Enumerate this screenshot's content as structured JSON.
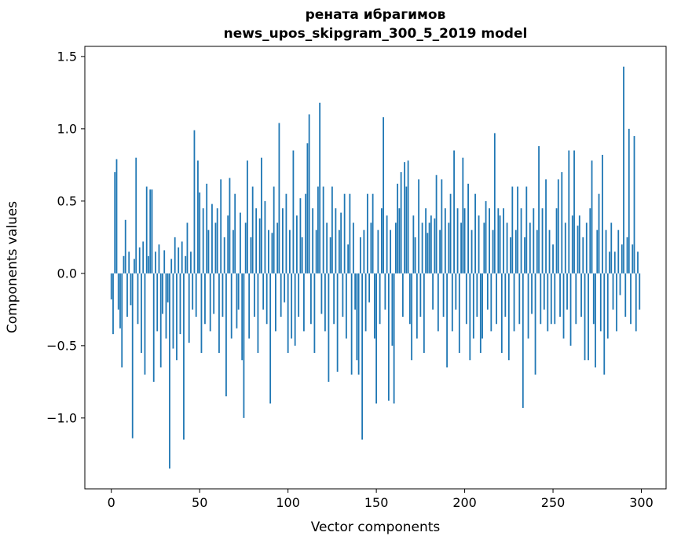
{
  "figure": {
    "title_line1": "рената ибрагимов",
    "title_line2": "news_upos_skipgram_300_5_2019 model",
    "xlabel": "Vector components",
    "ylabel": "Components values"
  },
  "chart_data": {
    "type": "bar",
    "title": "рената ибрагимов\nnews_upos_skipgram_300_5_2019 model",
    "xlabel": "Vector components",
    "ylabel": "Components values",
    "bar_color": "#1f77b4",
    "grid": false,
    "legend": "none",
    "xlim": [
      -15,
      314
    ],
    "ylim": [
      -1.49,
      1.57
    ],
    "xticks": [
      0,
      50,
      100,
      150,
      200,
      250,
      300
    ],
    "yticks": [
      -1.0,
      -0.5,
      0.0,
      0.5,
      1.0,
      1.5
    ],
    "n_components": 300,
    "values": [
      -0.18,
      -0.42,
      0.7,
      0.79,
      -0.25,
      -0.38,
      -0.65,
      0.12,
      0.37,
      -0.3,
      0.15,
      -0.22,
      -1.14,
      0.1,
      0.8,
      -0.35,
      0.18,
      -0.55,
      0.22,
      -0.7,
      0.6,
      0.12,
      0.58,
      0.58,
      -0.75,
      0.15,
      -0.4,
      0.2,
      -0.65,
      -0.28,
      0.16,
      -0.45,
      -0.2,
      -1.35,
      0.1,
      -0.52,
      0.25,
      -0.6,
      0.18,
      -0.42,
      0.22,
      -1.15,
      0.12,
      0.35,
      -0.48,
      0.15,
      -0.25,
      0.99,
      -0.3,
      0.78,
      0.56,
      -0.55,
      0.45,
      -0.35,
      0.62,
      0.3,
      -0.4,
      0.48,
      -0.28,
      0.35,
      0.45,
      -0.55,
      0.65,
      -0.3,
      0.25,
      -0.85,
      0.4,
      0.66,
      -0.45,
      0.3,
      0.55,
      -0.38,
      -0.25,
      0.42,
      -0.6,
      -1.0,
      0.35,
      0.78,
      -0.45,
      0.25,
      0.6,
      -0.3,
      0.45,
      -0.55,
      0.38,
      0.8,
      -0.25,
      0.5,
      -0.35,
      0.3,
      -0.9,
      0.28,
      0.6,
      -0.4,
      0.35,
      1.04,
      -0.3,
      0.45,
      -0.2,
      0.55,
      -0.55,
      0.3,
      -0.45,
      0.85,
      -0.5,
      0.4,
      -0.3,
      0.52,
      0.25,
      -0.4,
      0.55,
      0.9,
      1.1,
      -0.35,
      0.45,
      -0.55,
      0.3,
      0.6,
      1.18,
      -0.28,
      0.6,
      -0.4,
      0.35,
      -0.75,
      0.25,
      0.6,
      -0.35,
      0.45,
      -0.68,
      0.3,
      0.42,
      -0.3,
      0.55,
      -0.45,
      0.2,
      0.55,
      -0.7,
      0.35,
      -0.25,
      -0.6,
      -0.7,
      0.25,
      -1.15,
      0.3,
      -0.4,
      0.55,
      -0.2,
      0.35,
      0.55,
      -0.45,
      -0.9,
      0.3,
      -0.35,
      0.45,
      1.08,
      -0.25,
      0.4,
      -0.88,
      0.3,
      -0.5,
      -0.9,
      0.35,
      0.62,
      0.45,
      0.7,
      -0.3,
      0.77,
      0.6,
      0.78,
      -0.35,
      -0.6,
      0.4,
      0.25,
      -0.45,
      0.65,
      -0.3,
      0.35,
      -0.55,
      0.45,
      0.28,
      0.35,
      0.4,
      -0.25,
      0.38,
      0.68,
      -0.4,
      0.3,
      0.65,
      -0.3,
      0.45,
      -0.65,
      0.35,
      0.55,
      -0.4,
      0.85,
      -0.25,
      0.45,
      -0.55,
      0.35,
      0.8,
      0.45,
      -0.35,
      0.62,
      -0.6,
      0.3,
      -0.45,
      0.55,
      -0.3,
      0.4,
      -0.55,
      -0.45,
      0.35,
      0.5,
      -0.25,
      0.45,
      -0.4,
      0.3,
      0.97,
      -0.35,
      0.45,
      0.4,
      -0.55,
      0.45,
      -0.3,
      0.35,
      -0.6,
      0.25,
      0.6,
      -0.4,
      0.3,
      0.6,
      -0.35,
      0.45,
      -0.93,
      0.25,
      0.6,
      -0.45,
      0.35,
      -0.28,
      0.45,
      -0.7,
      0.3,
      0.88,
      -0.35,
      0.45,
      -0.25,
      0.65,
      -0.4,
      0.3,
      -0.35,
      0.2,
      -0.35,
      0.45,
      0.65,
      -0.3,
      0.7,
      -0.45,
      0.35,
      -0.25,
      0.85,
      -0.5,
      0.4,
      0.85,
      -0.35,
      0.33,
      0.4,
      -0.3,
      0.25,
      -0.6,
      0.35,
      -0.6,
      0.45,
      0.78,
      -0.35,
      -0.65,
      0.3,
      0.55,
      -0.4,
      0.82,
      -0.7,
      0.3,
      -0.45,
      0.15,
      0.35,
      -0.25,
      0.15,
      -0.4,
      0.3,
      -0.15,
      0.2,
      1.43,
      -0.3,
      0.25,
      1.0,
      -0.35,
      0.2,
      0.95,
      -0.4,
      0.15,
      -0.25
    ]
  }
}
